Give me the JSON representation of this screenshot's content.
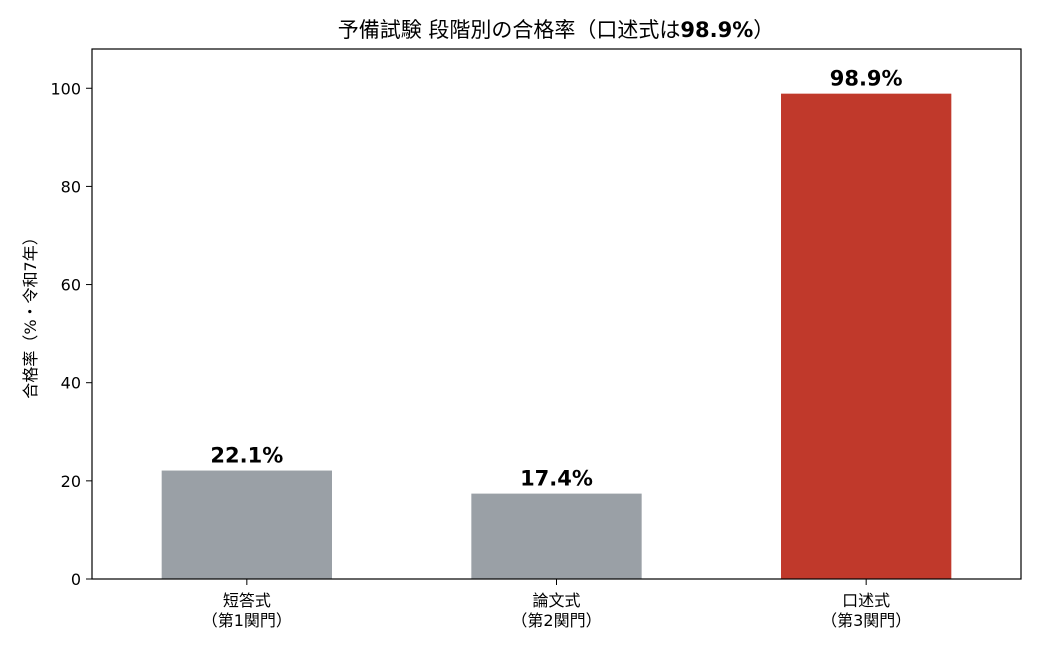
{
  "chart_data": {
    "type": "bar",
    "title": "予備試験 段階別の合格率（口述式は98.9%）",
    "title_parts": {
      "normal": "予備試験 段階別の合格率（口述式は",
      "bold": "98.9%",
      "end": "）"
    },
    "ylabel": "合格率（%・令和7年）",
    "xlabel": "",
    "ylim": [
      0,
      108
    ],
    "yticks": [
      0,
      20,
      40,
      60,
      80,
      100
    ],
    "categories": [
      {
        "line1": "短答式",
        "line2": "（第1関門）"
      },
      {
        "line1": "論文式",
        "line2": "（第2関門）"
      },
      {
        "line1": "口述式",
        "line2": "（第3関門）"
      }
    ],
    "values": [
      22.1,
      17.4,
      98.9
    ],
    "data_labels": [
      "22.1%",
      "17.4%",
      "98.9%"
    ],
    "colors": [
      "#9aa0a6",
      "#9aa0a6",
      "#c0392b"
    ],
    "grid": false
  }
}
